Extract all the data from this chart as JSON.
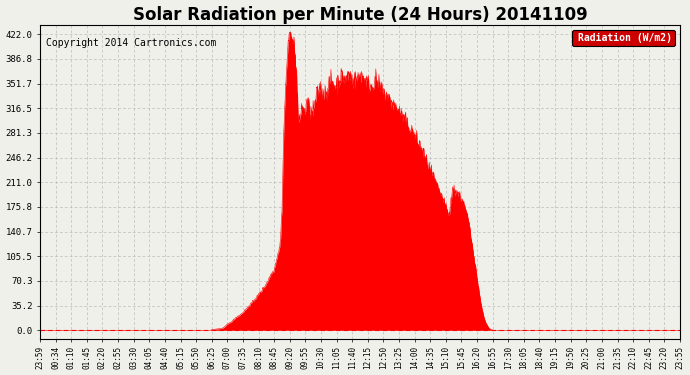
{
  "title": "Solar Radiation per Minute (24 Hours) 20141109",
  "copyright_text": "Copyright 2014 Cartronics.com",
  "legend_label": "Radiation (W/m2)",
  "ytick_labels": [
    "0.0",
    "35.2",
    "70.3",
    "105.5",
    "140.7",
    "175.8",
    "211.0",
    "246.2",
    "281.3",
    "316.5",
    "351.7",
    "386.8",
    "422.0"
  ],
  "ytick_values": [
    0.0,
    35.2,
    70.3,
    105.5,
    140.7,
    175.8,
    211.0,
    246.2,
    281.3,
    316.5,
    351.7,
    386.8,
    422.0
  ],
  "ymax": 435.0,
  "ymin": -12.0,
  "bg_color": "#f0f0eb",
  "fill_color": "#ff0000",
  "line_color": "#ff0000",
  "grid_color": "#bbbbbb",
  "dashed_zero_color": "#ff0000",
  "title_fontsize": 12,
  "copyright_fontsize": 7,
  "legend_bg": "#cc0000",
  "legend_text_color": "#ffffff",
  "xtick_labels": [
    "23:59",
    "00:34",
    "01:10",
    "01:45",
    "02:20",
    "02:55",
    "03:30",
    "04:05",
    "04:40",
    "05:15",
    "05:50",
    "06:25",
    "07:00",
    "07:35",
    "08:10",
    "08:45",
    "09:20",
    "09:55",
    "10:30",
    "11:05",
    "11:40",
    "12:15",
    "12:50",
    "13:25",
    "14:00",
    "14:35",
    "15:10",
    "15:45",
    "16:20",
    "16:55",
    "17:30",
    "18:05",
    "18:40",
    "19:15",
    "19:50",
    "20:25",
    "21:00",
    "21:35",
    "22:10",
    "22:45",
    "23:20",
    "23:55"
  ],
  "key_times": [
    0,
    380,
    400,
    415,
    420,
    430,
    440,
    450,
    460,
    470,
    480,
    490,
    500,
    510,
    520,
    530,
    535,
    540,
    545,
    548,
    552,
    555,
    558,
    562,
    565,
    568,
    572,
    575,
    578,
    580,
    583,
    586,
    589,
    592,
    595,
    598,
    602,
    606,
    610,
    615,
    620,
    625,
    630,
    635,
    640,
    645,
    650,
    655,
    660,
    665,
    670,
    675,
    680,
    685,
    690,
    695,
    700,
    705,
    710,
    715,
    720,
    725,
    730,
    735,
    740,
    745,
    750,
    755,
    760,
    765,
    770,
    775,
    780,
    785,
    790,
    795,
    800,
    805,
    810,
    815,
    820,
    825,
    830,
    835,
    840,
    845,
    850,
    855,
    860,
    865,
    870,
    875,
    880,
    885,
    890,
    895,
    900,
    905,
    910,
    915,
    920,
    925,
    930,
    935,
    940,
    945,
    950,
    955,
    960,
    965,
    970,
    975,
    980,
    985,
    990,
    995,
    1000,
    1005,
    1010,
    1015,
    1020,
    1440
  ],
  "key_vals": [
    0,
    0,
    2,
    5,
    8,
    12,
    18,
    22,
    28,
    35,
    42,
    50,
    58,
    68,
    80,
    95,
    110,
    125,
    200,
    280,
    340,
    380,
    410,
    422,
    418,
    415,
    400,
    380,
    350,
    310,
    295,
    310,
    320,
    315,
    310,
    320,
    325,
    315,
    310,
    315,
    330,
    340,
    345,
    340,
    338,
    342,
    350,
    355,
    352,
    348,
    355,
    360,
    362,
    358,
    360,
    365,
    360,
    355,
    358,
    360,
    365,
    362,
    358,
    355,
    350,
    348,
    352,
    355,
    350,
    345,
    340,
    338,
    335,
    330,
    325,
    322,
    318,
    315,
    310,
    305,
    300,
    295,
    290,
    285,
    280,
    275,
    268,
    262,
    255,
    248,
    240,
    232,
    225,
    218,
    210,
    202,
    195,
    188,
    180,
    172,
    165,
    190,
    200,
    198,
    195,
    190,
    185,
    175,
    165,
    150,
    130,
    110,
    88,
    65,
    45,
    28,
    15,
    8,
    3,
    1,
    0,
    0
  ]
}
